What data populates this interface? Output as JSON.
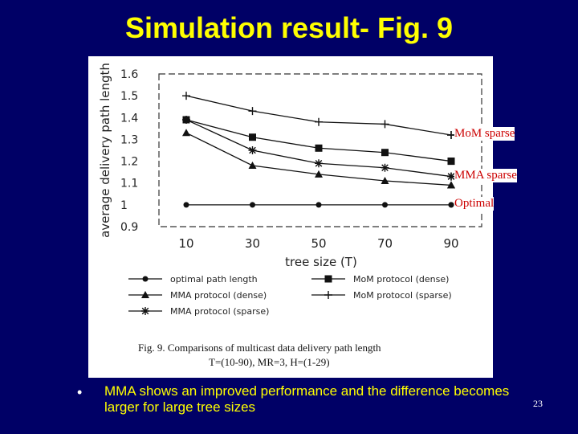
{
  "slide": {
    "title": "Simulation result- Fig. 9",
    "bullet": "MMA shows an improved performance and the difference becomes larger for large tree sizes",
    "page_number": "23"
  },
  "annotations": [
    {
      "key": "mom_sparse",
      "text": "MoM sparse"
    },
    {
      "key": "mma_sparse",
      "text": "MMA sparse"
    },
    {
      "key": "optimal",
      "text": "Optimal"
    }
  ],
  "chart_data": {
    "type": "line",
    "xlabel": "tree size (T)",
    "ylabel": "average delivery path length",
    "x": [
      10,
      30,
      50,
      70,
      90
    ],
    "xticks": [
      "10",
      "30",
      "50",
      "70",
      "90"
    ],
    "yticks": [
      "0.9",
      "1",
      "1.1",
      "1.2",
      "1.3",
      "1.4",
      "1.5",
      "1.6"
    ],
    "ylim": [
      0.9,
      1.6
    ],
    "caption_line1": "Fig. 9. Comparisons of multicast data delivery path length",
    "caption_line2": "T=(10-90), MR=3, H=(1-29)",
    "series": [
      {
        "key": "opt",
        "name": "optimal path length",
        "marker": "circle",
        "values": [
          1.0,
          1.0,
          1.0,
          1.0,
          1.0
        ]
      },
      {
        "key": "mma_dense",
        "name": "MMA protocol (dense)",
        "marker": "triangle",
        "values": [
          1.33,
          1.18,
          1.14,
          1.11,
          1.09
        ]
      },
      {
        "key": "mma_sparse",
        "name": "MMA protocol (sparse)",
        "marker": "asterisk",
        "values": [
          1.39,
          1.25,
          1.19,
          1.17,
          1.13
        ]
      },
      {
        "key": "mom_dense",
        "name": "MoM protocol (dense)",
        "marker": "square",
        "values": [
          1.39,
          1.31,
          1.26,
          1.24,
          1.2
        ]
      },
      {
        "key": "mom_sparse",
        "name": "MoM protocol (sparse)",
        "marker": "plus",
        "values": [
          1.5,
          1.43,
          1.38,
          1.37,
          1.32
        ]
      }
    ],
    "legend": {
      "placement": "below plot"
    }
  }
}
